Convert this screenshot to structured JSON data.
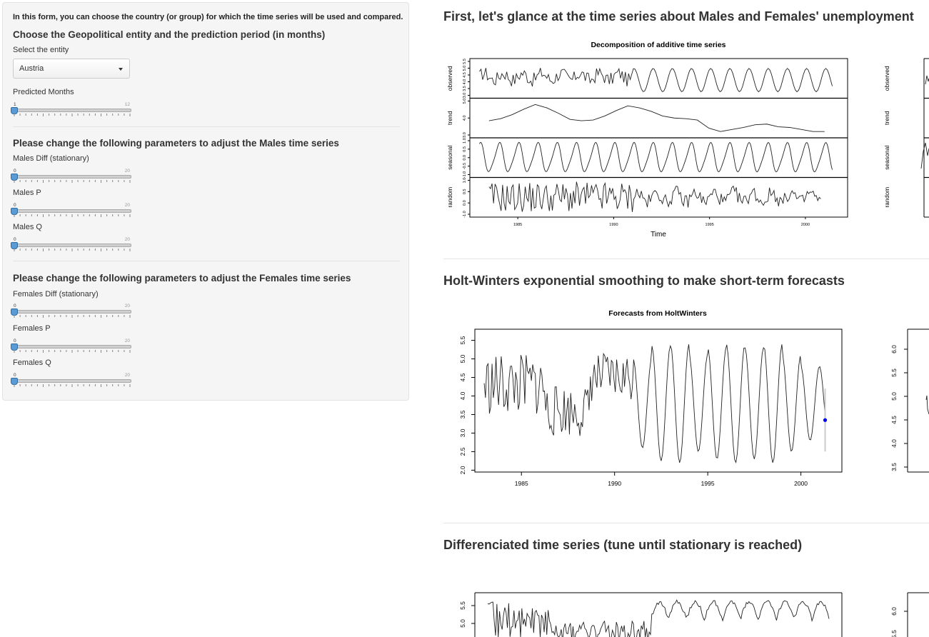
{
  "sidebar": {
    "intro": "In this form, you can choose the country (or group) for which the time series will be used and compared.",
    "section1_title": "Choose the Geopolitical entity and the prediction period (in months)",
    "entity_label": "Select the entity",
    "entity_value": "Austria",
    "predicted_label": "Predicted Months",
    "predicted": {
      "min": "1",
      "max": "12",
      "value": 1
    },
    "section2_title": "Please change the following parameters to adjust the Males time series",
    "males_diff_label": "Males Diff (stationary)",
    "males_p_label": "Males P",
    "males_q_label": "Males Q",
    "section3_title": "Please change the following parameters to adjust the Females time series",
    "females_diff_label": "Females Diff (stationary)",
    "females_p_label": "Females P",
    "females_q_label": "Females Q",
    "param_min": "0",
    "param_max": "20",
    "param_value": 0
  },
  "main": {
    "section1_title": "First, let's glance at the time series about Males and Females' unemployment",
    "section2_title": "Holt-Winters exponential smoothing to make short-term forecasts",
    "section3_title": "Differenciated time series (tune until stationary is reached)"
  },
  "colors": {
    "forecast_point": "#0000ff",
    "forecast_interval": "#cccccc",
    "slider_handle": "#5b9bd5"
  },
  "chart_data": [
    {
      "type": "line",
      "title": "Decomposition of additive time series",
      "xlabel": "Time",
      "panels": [
        {
          "name": "observed",
          "yticks": [
            "3.0",
            "3.5",
            "4.0",
            "4.5",
            "5.0",
            "5.5"
          ]
        },
        {
          "name": "trend",
          "yticks": [
            "3.0",
            "4.0",
            "5.0"
          ]
        },
        {
          "name": "seasonal",
          "yticks": [
            "-1.0",
            "-0.5",
            "0.0",
            "0.5",
            "1.0"
          ]
        },
        {
          "name": "random",
          "yticks": [
            "-1.0",
            "0.0",
            "0.5",
            "1.0"
          ]
        }
      ],
      "xticks": [
        "1985",
        "1990",
        "1995",
        "2000"
      ],
      "trend_values": [
        3.75,
        3.9,
        4.2,
        4.6,
        4.95,
        4.7,
        4.3,
        3.85,
        3.75,
        3.8,
        4.1,
        4.5,
        4.85,
        4.7,
        4.45,
        4.1,
        3.95,
        3.9,
        3.8,
        3.2,
        2.95,
        3.1,
        3.25,
        3.45,
        3.5,
        3.3,
        3.25,
        3.1,
        2.95,
        2.95
      ]
    },
    {
      "type": "line",
      "title": "Forecasts from HoltWinters",
      "xticks": [
        "1985",
        "1990",
        "1995",
        "2000"
      ],
      "yticks": [
        "2.0",
        "2.5",
        "3.0",
        "3.5",
        "4.0",
        "4.5",
        "5.0",
        "5.5"
      ],
      "xlim": [
        1982.5,
        2002.2
      ],
      "ylim": [
        1.95,
        5.8
      ],
      "forecast": {
        "x": 2001.3,
        "y": 3.35,
        "lo": 2.5,
        "hi": 4.2
      }
    },
    {
      "type": "line",
      "title": "",
      "yticks": [
        "5.0",
        "5.5"
      ]
    }
  ]
}
